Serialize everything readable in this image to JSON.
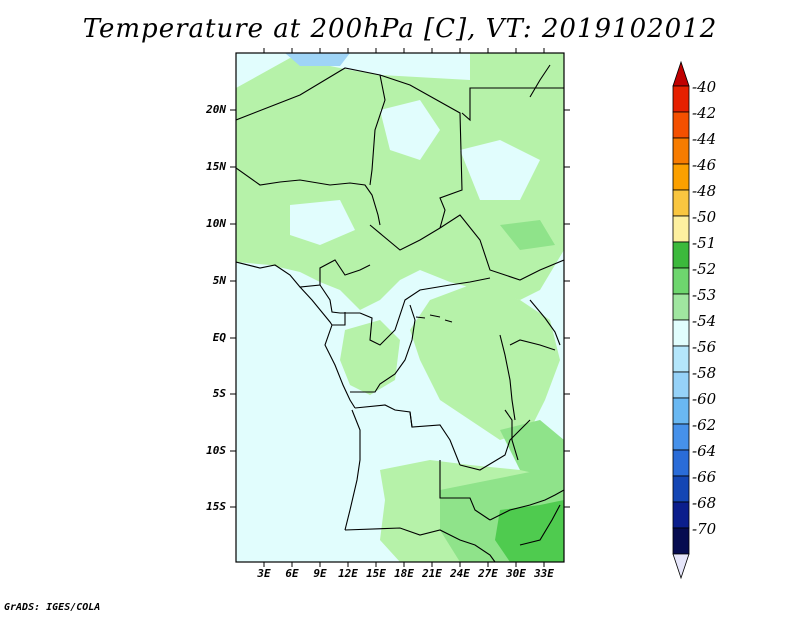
{
  "title": "Temperature at 200hPa [C], VT: 2019102012",
  "credit": "GrADS: IGES/COLA",
  "lat_labels": [
    "20N",
    "15N",
    "10N",
    "5N",
    "EQ",
    "5S",
    "10S",
    "15S"
  ],
  "lon_labels": [
    "3E",
    "6E",
    "9E",
    "12E",
    "15E",
    "18E",
    "21E",
    "24E",
    "27E",
    "30E",
    "33E"
  ],
  "colorbar": {
    "labels": [
      "-40",
      "-42",
      "-44",
      "-46",
      "-48",
      "-50",
      "-51",
      "-52",
      "-53",
      "-54",
      "-56",
      "-58",
      "-60",
      "-62",
      "-64",
      "-66",
      "-68",
      "-70"
    ],
    "colors": [
      "#c00000",
      "#e62000",
      "#f45000",
      "#f77c00",
      "#fba000",
      "#f9c640",
      "#fdf0a0",
      "#3cb93c",
      "#6ed66e",
      "#a0e6a0",
      "#e1fdfd",
      "#b4e6fb",
      "#96d2f8",
      "#6ab8f2",
      "#4691ea",
      "#2a6cd8",
      "#1446b4",
      "#0b1e8c",
      "#060c50"
    ],
    "low_end_color": "#e6e6fa"
  },
  "colors": {
    "ocean": "#e1fdfd",
    "light_green": "#b6f2a9",
    "medium_green": "#8fe38a",
    "dark_green": "#4fcb4f",
    "blue_patch": "#9fd4f6"
  }
}
